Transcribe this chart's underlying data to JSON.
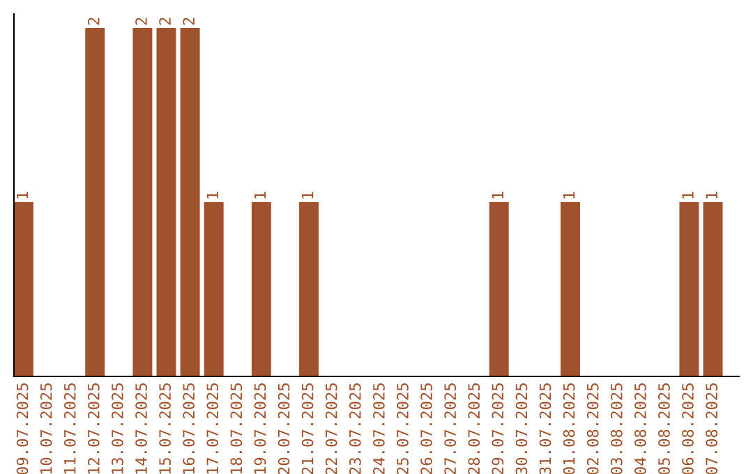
{
  "chart_data": {
    "type": "bar",
    "categories": [
      "09.07.2025",
      "10.07.2025",
      "11.07.2025",
      "12.07.2025",
      "13.07.2025",
      "14.07.2025",
      "15.07.2025",
      "16.07.2025",
      "17.07.2025",
      "18.07.2025",
      "19.07.2025",
      "20.07.2025",
      "21.07.2025",
      "22.07.2025",
      "23.07.2025",
      "24.07.2025",
      "25.07.2025",
      "26.07.2025",
      "27.07.2025",
      "28.07.2025",
      "29.07.2025",
      "30.07.2025",
      "31.07.2025",
      "01.08.2025",
      "02.08.2025",
      "03.08.2025",
      "04.08.2025",
      "05.08.2025",
      "06.08.2025",
      "07.08.2025"
    ],
    "values": [
      1,
      0,
      0,
      2,
      0,
      2,
      2,
      2,
      1,
      0,
      1,
      0,
      1,
      0,
      0,
      0,
      0,
      0,
      0,
      0,
      1,
      0,
      0,
      1,
      0,
      0,
      0,
      0,
      1,
      1
    ],
    "value_labels": [
      "1",
      null,
      null,
      "2",
      null,
      "2",
      "2",
      "2",
      "1",
      null,
      "1",
      null,
      "1",
      null,
      null,
      null,
      null,
      null,
      null,
      null,
      "1",
      null,
      null,
      "1",
      null,
      null,
      null,
      null,
      "1",
      "1"
    ],
    "color": "#a0522d",
    "grid": false,
    "legend": false
  }
}
